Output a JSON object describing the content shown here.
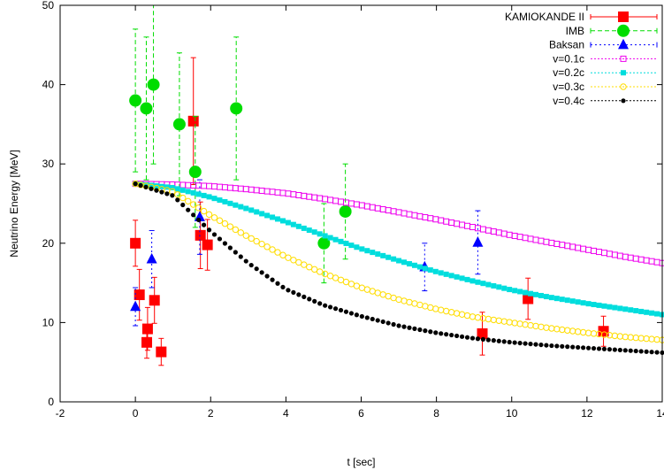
{
  "chart_data": {
    "type": "scatter",
    "title": "",
    "xlabel": "t [sec]",
    "ylabel": "Neutrino Energy [MeV]",
    "xlim": [
      -2,
      14
    ],
    "ylim": [
      0,
      50
    ],
    "xticks": [
      "-2",
      "0",
      "2",
      "4",
      "6",
      "8",
      "10",
      "12",
      "14"
    ],
    "yticks": [
      "0",
      "10",
      "20",
      "30",
      "40",
      "50"
    ],
    "legend_position": "top-right",
    "series": [
      {
        "name": "KAMIOKANDE II",
        "kind": "points",
        "marker": "filled-square",
        "color": "#ff0000",
        "points": [
          {
            "x": 0.0,
            "y": 20.0,
            "err": 2.9
          },
          {
            "x": 0.107,
            "y": 13.5,
            "err": 3.2
          },
          {
            "x": 0.303,
            "y": 7.5,
            "err": 2.0
          },
          {
            "x": 0.324,
            "y": 9.2,
            "err": 2.7
          },
          {
            "x": 0.507,
            "y": 12.8,
            "err": 2.9
          },
          {
            "x": 0.686,
            "y": 6.3,
            "err": 1.7
          },
          {
            "x": 1.541,
            "y": 35.4,
            "err": 8.0
          },
          {
            "x": 1.728,
            "y": 21.0,
            "err": 4.2
          },
          {
            "x": 1.915,
            "y": 19.8,
            "err": 3.2
          },
          {
            "x": 9.219,
            "y": 8.6,
            "err": 2.7
          },
          {
            "x": 10.433,
            "y": 13.0,
            "err": 2.6
          },
          {
            "x": 12.439,
            "y": 8.9,
            "err": 1.9
          }
        ]
      },
      {
        "name": "IMB",
        "kind": "points",
        "marker": "filled-circle",
        "color": "#00dd00",
        "points": [
          {
            "x": 0.0,
            "y": 38.0,
            "err": 9.0
          },
          {
            "x": 0.29,
            "y": 37.0,
            "err": 9.0
          },
          {
            "x": 0.48,
            "y": 40.0,
            "err": 10.0
          },
          {
            "x": 1.17,
            "y": 35.0,
            "err": 9.0
          },
          {
            "x": 1.59,
            "y": 29.0,
            "err": 7.0
          },
          {
            "x": 2.68,
            "y": 37.0,
            "err": 9.0
          },
          {
            "x": 5.01,
            "y": 20.0,
            "err": 5.0
          },
          {
            "x": 5.58,
            "y": 24.0,
            "err": 6.0
          }
        ]
      },
      {
        "name": "Baksan",
        "kind": "points",
        "marker": "filled-triangle",
        "color": "#0000ff",
        "points": [
          {
            "x": 0.0,
            "y": 12.0,
            "err": 2.4
          },
          {
            "x": 0.435,
            "y": 18.0,
            "err": 3.6
          },
          {
            "x": 1.71,
            "y": 23.3,
            "err": 4.7
          },
          {
            "x": 7.687,
            "y": 17.0,
            "err": 3.0
          },
          {
            "x": 9.099,
            "y": 20.1,
            "err": 4.0
          }
        ]
      },
      {
        "name": "v=0.1c",
        "kind": "curve",
        "marker": "open-square",
        "color": "#ee00ee",
        "x": [
          0,
          1,
          2,
          3,
          4,
          5,
          6,
          7,
          8,
          9,
          10,
          11,
          12,
          13,
          14
        ],
        "y": [
          27.5,
          27.4,
          27.2,
          26.8,
          26.3,
          25.6,
          24.8,
          23.9,
          23.0,
          22.0,
          21.0,
          20.1,
          19.2,
          18.3,
          17.5
        ]
      },
      {
        "name": "v=0.2c",
        "kind": "curve",
        "marker": "filled-square",
        "color": "#00dddd",
        "x": [
          0,
          1,
          2,
          3,
          4,
          5,
          6,
          7,
          8,
          9,
          10,
          11,
          12,
          13,
          14
        ],
        "y": [
          27.5,
          27.0,
          25.8,
          24.3,
          22.7,
          21.0,
          19.3,
          17.8,
          16.4,
          15.2,
          14.1,
          13.2,
          12.4,
          11.7,
          11.0
        ]
      },
      {
        "name": "v=0.3c",
        "kind": "curve",
        "marker": "open-circle",
        "color": "#ffdd00",
        "x": [
          0,
          1,
          2,
          3,
          4,
          5,
          6,
          7,
          8,
          9,
          10,
          11,
          12,
          13,
          14
        ],
        "y": [
          27.5,
          26.5,
          23.5,
          20.8,
          18.3,
          16.2,
          14.4,
          12.9,
          11.7,
          10.7,
          10.0,
          9.3,
          8.7,
          8.2,
          7.8
        ]
      },
      {
        "name": "v=0.4c",
        "kind": "curve",
        "marker": "filled-circle",
        "color": "#000000",
        "x": [
          0,
          1,
          2,
          3,
          4,
          5,
          6,
          7,
          8,
          9,
          10,
          11,
          12,
          13,
          14
        ],
        "y": [
          27.5,
          26.0,
          21.5,
          17.5,
          14.2,
          12.2,
          10.8,
          9.6,
          8.7,
          8.0,
          7.5,
          7.1,
          6.8,
          6.5,
          6.2
        ]
      }
    ]
  }
}
